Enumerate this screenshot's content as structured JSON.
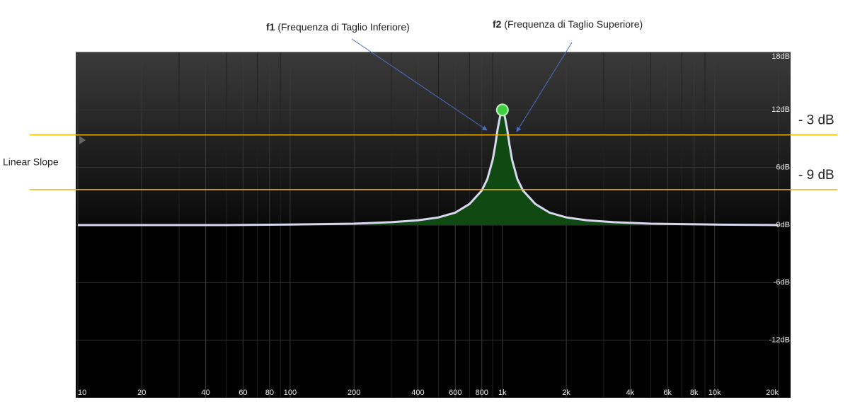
{
  "chart_data": {
    "type": "line",
    "x": [
      10,
      50,
      100,
      200,
      300,
      400,
      500,
      600,
      700,
      800,
      850,
      900,
      925,
      950,
      975,
      1000,
      1026,
      1053,
      1081,
      1111,
      1176,
      1250,
      1429,
      1667,
      2000,
      2500,
      3333,
      5000,
      10000,
      20000
    ],
    "values": [
      0,
      0,
      0.05,
      0.15,
      0.3,
      0.5,
      0.8,
      1.3,
      2.2,
      3.6,
      4.8,
      6.8,
      8.3,
      10,
      11.3,
      12,
      11.3,
      10,
      8.3,
      6.8,
      4.8,
      3.6,
      2.2,
      1.3,
      0.8,
      0.5,
      0.3,
      0.15,
      0.05,
      0
    ],
    "color": "#d8d8f0",
    "fill_color": "#0f4a12",
    "peak": {
      "x": 1000,
      "value": 12,
      "color": "#3fcf3f"
    },
    "xscale": "log",
    "xlim": [
      10,
      20000
    ],
    "ylim": [
      -18,
      18
    ],
    "xticks": [
      10,
      20,
      40,
      60,
      80,
      100,
      200,
      400,
      600,
      800,
      {
        "value": 1000,
        "label": "1k"
      },
      {
        "value": 2000,
        "label": "2k"
      },
      {
        "value": 4000,
        "label": "4k"
      },
      {
        "value": 6000,
        "label": "6k"
      },
      {
        "value": 8000,
        "label": "8k"
      },
      {
        "value": 10000,
        "label": "10k"
      },
      {
        "value": 20000,
        "label": "20k"
      }
    ],
    "xminorticks": [
      30,
      50,
      70,
      90,
      300,
      500,
      700,
      900,
      3000,
      5000,
      7000,
      9000
    ],
    "yticks": [
      {
        "value": 18,
        "label": "18dB"
      },
      {
        "value": 12,
        "label": "12dB"
      },
      {
        "value": 6,
        "label": "6dB"
      },
      {
        "value": 0,
        "label": "0dB"
      },
      {
        "value": -6,
        "label": "-6dB"
      },
      {
        "value": -12,
        "label": "-12dB"
      }
    ],
    "grid": true,
    "hlines": [
      {
        "label": "- 3 dB",
        "value": 9.4,
        "color": "#f5b800"
      },
      {
        "label": "- 9 dB",
        "value": 3.7,
        "color": "#f5b800"
      }
    ],
    "annotations": {
      "f1": {
        "bold": "f1",
        "text": "(Frequenza di Taglio Inferiore)"
      },
      "f2": {
        "bold": "f2",
        "text": "(Frequenza di Taglio Superiore)"
      },
      "slope": "Linear Slope"
    }
  }
}
